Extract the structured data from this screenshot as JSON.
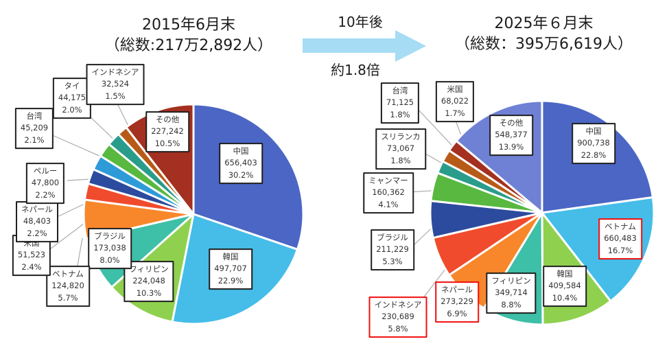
{
  "header": {
    "left": {
      "title": "2015年6月末",
      "subtitle": "（総数:217万2,892人）"
    },
    "right": {
      "title": "2025年６月末",
      "subtitle": "（総数：395万6,619人）"
    },
    "transition": {
      "label_top": "10年後",
      "label_bottom": "約1.8倍"
    }
  },
  "colors": {
    "arrow": "#A6DCF4",
    "leader_line": "#ABABAB",
    "highlight_border": "#F20D0D",
    "box_border": "#1F1F1F"
  },
  "chart_data": [
    {
      "type": "pie",
      "title": "2015年6月末",
      "total": "217万2,892人",
      "legend_position": "callout-boxes",
      "slices": [
        {
          "name": "中国",
          "value": "656,403",
          "pct": 30.2,
          "pct_label": "30.2%",
          "color": "#4B66C4",
          "highlight": false
        },
        {
          "name": "韓国",
          "value": "497,707",
          "pct": 22.9,
          "pct_label": "22.9%",
          "color": "#45BDE8",
          "highlight": false
        },
        {
          "name": "フィリピン",
          "value": "224,048",
          "pct": 10.3,
          "pct_label": "10.3%",
          "color": "#8FD14F",
          "highlight": false
        },
        {
          "name": "ブラジル",
          "value": "173,038",
          "pct": 8.0,
          "pct_label": "8.0%",
          "color": "#3EBFA7",
          "highlight": false
        },
        {
          "name": "ベトナム",
          "value": "124,820",
          "pct": 5.7,
          "pct_label": "5.7%",
          "color": "#F8872B",
          "highlight": false
        },
        {
          "name": "米国",
          "value": "51,523",
          "pct": 2.4,
          "pct_label": "2.4%",
          "color": "#F04B2D",
          "highlight": false
        },
        {
          "name": "ネパール",
          "value": "48,403",
          "pct": 2.2,
          "pct_label": "2.2%",
          "color": "#2C4B9E",
          "highlight": false
        },
        {
          "name": "ペルー",
          "value": "47,800",
          "pct": 2.2,
          "pct_label": "2.2%",
          "color": "#2E9BD8",
          "highlight": false
        },
        {
          "name": "台湾",
          "value": "45,209",
          "pct": 2.1,
          "pct_label": "2.1%",
          "color": "#58B840",
          "highlight": false
        },
        {
          "name": "タイ",
          "value": "44,175",
          "pct": 2.0,
          "pct_label": "2.0%",
          "color": "#2A9C8B",
          "highlight": false
        },
        {
          "name": "インドネシア",
          "value": "32,524",
          "pct": 1.5,
          "pct_label": "1.5%",
          "color": "#B85A17",
          "highlight": false
        },
        {
          "name": "その他",
          "value": "227,242",
          "pct": 10.5,
          "pct_label": "10.5%",
          "color": "#A33020",
          "highlight": false
        }
      ]
    },
    {
      "type": "pie",
      "title": "2025年６月末",
      "total": "395万6,619人",
      "legend_position": "callout-boxes",
      "slices": [
        {
          "name": "中国",
          "value": "900,738",
          "pct": 22.8,
          "pct_label": "22.8%",
          "color": "#4B66C4",
          "highlight": false
        },
        {
          "name": "ベトナム",
          "value": "660,483",
          "pct": 16.7,
          "pct_label": "16.7%",
          "color": "#45BDE8",
          "highlight": true
        },
        {
          "name": "韓国",
          "value": "409,584",
          "pct": 10.4,
          "pct_label": "10.4%",
          "color": "#8FD14F",
          "highlight": false
        },
        {
          "name": "フィリピン",
          "value": "349,714",
          "pct": 8.8,
          "pct_label": "8.8%",
          "color": "#3EBFA7",
          "highlight": false
        },
        {
          "name": "ネパール",
          "value": "273,229",
          "pct": 6.9,
          "pct_label": "6.9%",
          "color": "#F8872B",
          "highlight": true
        },
        {
          "name": "インドネシア",
          "value": "230,689",
          "pct": 5.8,
          "pct_label": "5.8%",
          "color": "#F04B2D",
          "highlight": true
        },
        {
          "name": "ブラジル",
          "value": "211,229",
          "pct": 5.3,
          "pct_label": "5.3%",
          "color": "#2C4B9E",
          "highlight": false
        },
        {
          "name": "ミャンマー",
          "value": "160,362",
          "pct": 4.1,
          "pct_label": "4.1%",
          "color": "#58B840",
          "highlight": false
        },
        {
          "name": "スリランカ",
          "value": "73,067",
          "pct": 1.8,
          "pct_label": "1.8%",
          "color": "#2A9C8B",
          "highlight": false
        },
        {
          "name": "台湾",
          "value": "71,125",
          "pct": 1.8,
          "pct_label": "1.8%",
          "color": "#B85A17",
          "highlight": false
        },
        {
          "name": "米国",
          "value": "68,022",
          "pct": 1.7,
          "pct_label": "1.7%",
          "color": "#A33020",
          "highlight": false
        },
        {
          "name": "その他",
          "value": "548,377",
          "pct": 13.9,
          "pct_label": "13.9%",
          "color": "#6F81D4",
          "highlight": false
        }
      ]
    }
  ]
}
